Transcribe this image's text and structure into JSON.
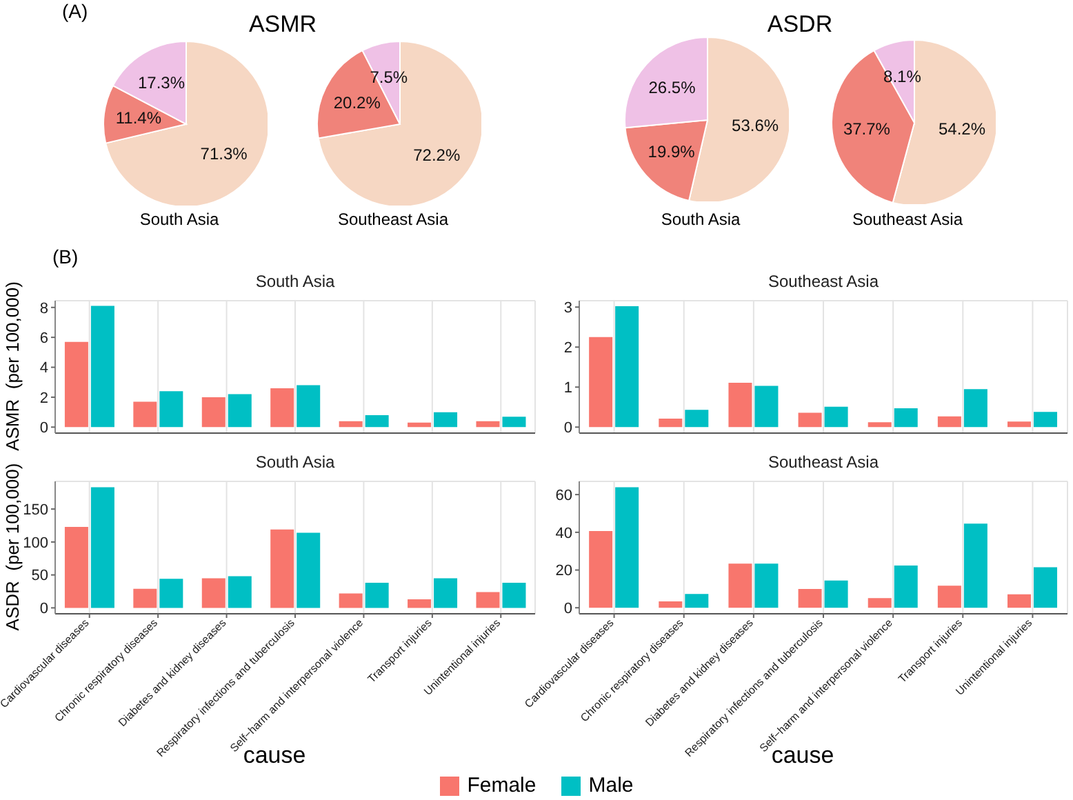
{
  "chart_data": [
    {
      "type": "pie",
      "title": "ASMR",
      "xlabel": "South Asia",
      "annotations": [
        "(A)"
      ],
      "categories": [
        null,
        null,
        null
      ],
      "values": [
        71.3,
        11.4,
        17.3
      ],
      "value_labels": [
        "71.3%",
        "11.4%",
        "17.3%"
      ],
      "colors": [
        "#f6d7c3",
        "#f0837a",
        "#efc1e6"
      ]
    },
    {
      "type": "pie",
      "xlabel": "Southeast Asia",
      "categories": [
        null,
        null,
        null
      ],
      "values": [
        72.2,
        20.2,
        7.5
      ],
      "value_labels": [
        "72.2%",
        "20.2%",
        "7.5%"
      ],
      "colors": [
        "#f6d7c3",
        "#f0837a",
        "#efc1e6"
      ]
    },
    {
      "type": "pie",
      "title": "ASDR",
      "xlabel": "South Asia",
      "categories": [
        null,
        null,
        null
      ],
      "values": [
        53.6,
        19.9,
        26.5
      ],
      "value_labels": [
        "53.6%",
        "19.9%",
        "26.5%"
      ],
      "colors": [
        "#f6d7c3",
        "#f0837a",
        "#efc1e6"
      ]
    },
    {
      "type": "pie",
      "xlabel": "Southeast Asia",
      "categories": [
        null,
        null,
        null
      ],
      "values": [
        54.2,
        37.7,
        8.1
      ],
      "value_labels": [
        "54.2%",
        "37.7%",
        "8.1%"
      ],
      "colors": [
        "#f6d7c3",
        "#f0837a",
        "#efc1e6"
      ]
    },
    {
      "type": "bar",
      "title": "South Asia",
      "ylabel": "ASMR  (per 100,000)",
      "annotations": [
        "(B)"
      ],
      "legend": "bottom",
      "categories": [
        null,
        null,
        null,
        null,
        null,
        null,
        null
      ],
      "tick_labels": "y",
      "grid": true,
      "ylim": [
        -0.4,
        8.45
      ],
      "yticks": [
        0,
        2,
        4,
        6,
        8
      ],
      "series": [
        {
          "name": "Female",
          "color": "#f8766d",
          "values": [
            5.7,
            1.7,
            2.0,
            2.6,
            0.4,
            0.3,
            0.4
          ]
        },
        {
          "name": "Male",
          "color": "#00bfc4",
          "values": [
            8.1,
            2.4,
            2.2,
            2.8,
            0.8,
            1.0,
            0.7
          ]
        }
      ]
    },
    {
      "type": "bar",
      "title": "Southeast Asia",
      "categories": [
        null,
        null,
        null,
        null,
        null,
        null,
        null
      ],
      "tick_labels": "y",
      "grid": true,
      "ylim": [
        -0.15,
        3.16
      ],
      "yticks": [
        0,
        1,
        2,
        3
      ],
      "series": [
        {
          "color": "#f8766d",
          "values": [
            2.25,
            0.21,
            1.11,
            0.36,
            0.12,
            0.27,
            0.14
          ]
        },
        {
          "color": "#00bfc4",
          "values": [
            3.02,
            0.43,
            1.03,
            0.51,
            0.47,
            0.95,
            0.38
          ]
        }
      ]
    },
    {
      "type": "bar",
      "title": "South Asia",
      "ylabel": "ASDR  (per 100,000)",
      "xlabel": "cause",
      "categories": [
        "Cardiovascular diseases",
        "Chronic respiratory diseases",
        "Diabetes and kidney diseases",
        "Respiratory infections and tuberculosis",
        "Self−harm and interpersonal violence",
        "Transport injuries",
        "Unintentional injuries"
      ],
      "grid": true,
      "ylim": [
        -9,
        192
      ],
      "yticks": [
        0,
        50,
        100,
        150
      ],
      "series": [
        {
          "color": "#f8766d",
          "values": [
            123,
            29,
            45,
            119,
            22,
            13,
            24
          ]
        },
        {
          "color": "#00bfc4",
          "values": [
            183,
            44,
            48,
            114,
            38,
            45,
            38
          ]
        }
      ]
    },
    {
      "type": "bar",
      "title": "Southeast Asia",
      "xlabel": "cause",
      "categories": [
        "Cardiovascular diseases",
        "Chronic respiratory diseases",
        "Diabetes and kidney diseases",
        "Respiratory infections and tuberculosis",
        "Self−harm and interpersonal violence",
        "Transport injuries",
        "Unintentional injuries"
      ],
      "grid": true,
      "ylim": [
        -3.2,
        67
      ],
      "yticks": [
        0,
        20,
        40,
        60
      ],
      "series": [
        {
          "color": "#f8766d",
          "values": [
            40.7,
            3.4,
            23.4,
            10,
            5.1,
            11.7,
            7.1
          ]
        },
        {
          "color": "#00bfc4",
          "values": [
            63.9,
            7.3,
            23.4,
            14.4,
            22.4,
            44.6,
            21.5
          ]
        }
      ]
    }
  ]
}
